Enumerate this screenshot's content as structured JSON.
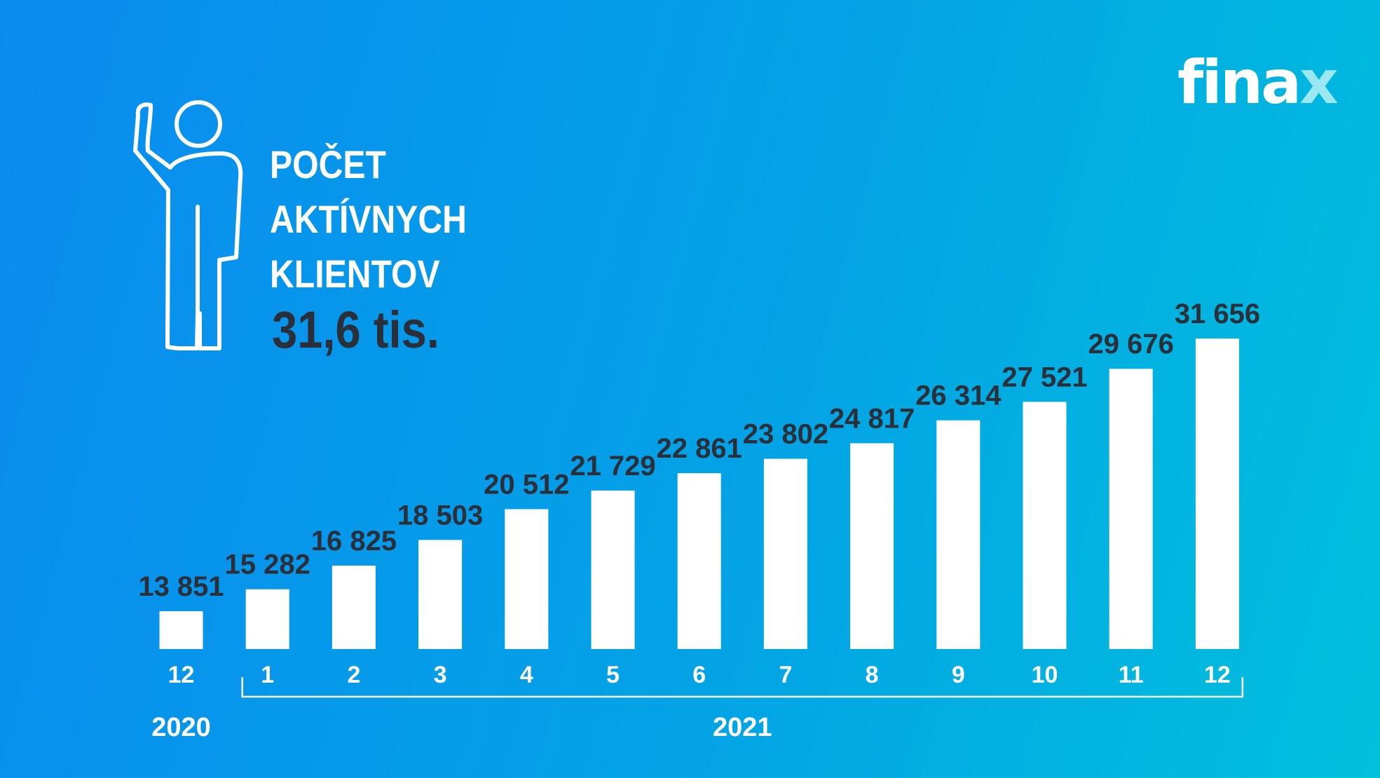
{
  "brand": {
    "name_main": "fina",
    "name_accent": "x"
  },
  "icon": "person-waving-icon",
  "title": {
    "line1": "POČET",
    "line2": "AKTÍVNYCH",
    "line3": "KLIENTOV"
  },
  "headline": "31,6 tis.",
  "colors": {
    "background_start": "#0a8bf0",
    "background_end": "#00c0dc",
    "bars": "#ffffff",
    "value_labels": "#2a2f3a",
    "accent": "#9be8f2"
  },
  "chart_data": {
    "type": "bar",
    "categories": [
      "12",
      "1",
      "2",
      "3",
      "4",
      "5",
      "6",
      "7",
      "8",
      "9",
      "10",
      "11",
      "12"
    ],
    "values": [
      13851,
      15282,
      16825,
      18503,
      20512,
      21729,
      22861,
      23802,
      24817,
      26314,
      27521,
      29676,
      31656
    ],
    "value_labels": [
      "13 851",
      "15 282",
      "16 825",
      "18 503",
      "20 512",
      "21 729",
      "22 861",
      "23 802",
      "24 817",
      "26 314",
      "27 521",
      "29 676",
      "31 656"
    ],
    "year_groups": [
      {
        "label": "2020",
        "categories": [
          "12"
        ]
      },
      {
        "label": "2021",
        "categories": [
          "1",
          "2",
          "3",
          "4",
          "5",
          "6",
          "7",
          "8",
          "9",
          "10",
          "11",
          "12"
        ]
      }
    ],
    "title": "",
    "xlabel": "",
    "ylabel": "",
    "grid": false
  }
}
